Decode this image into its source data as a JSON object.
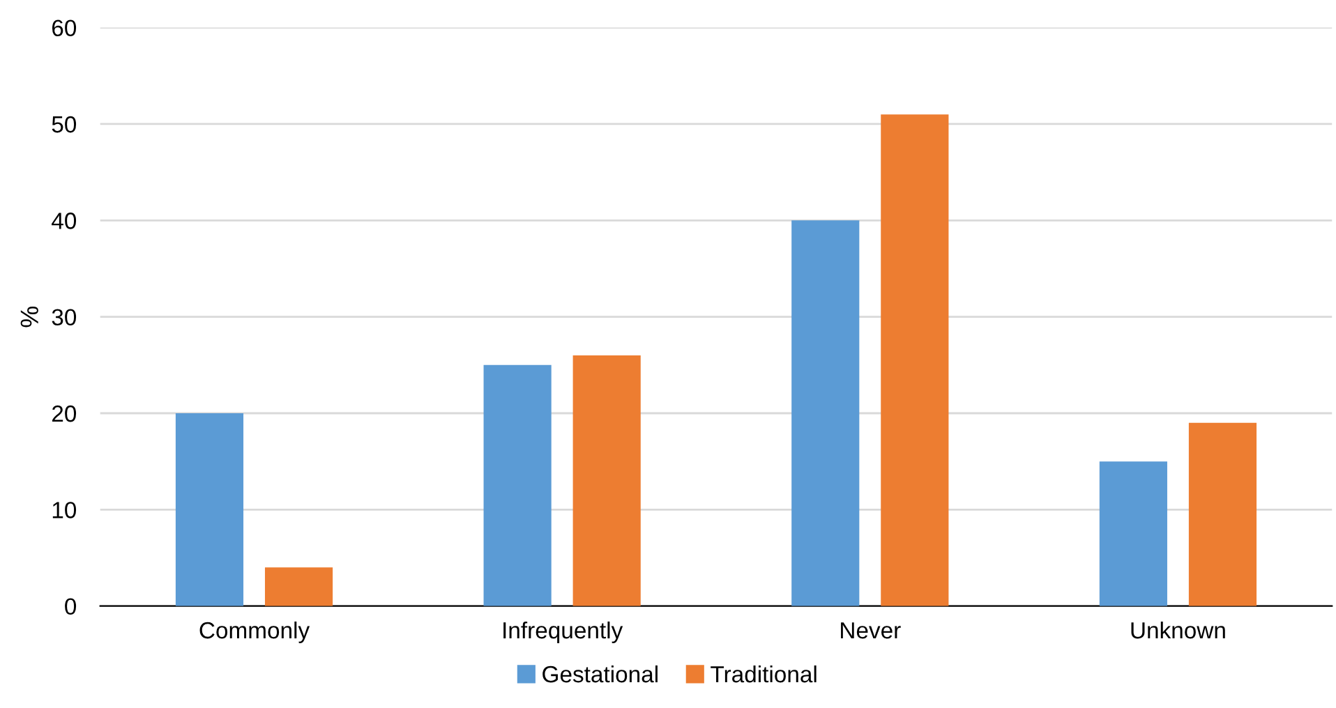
{
  "chart_data": {
    "type": "bar",
    "ylabel": "%",
    "categories": [
      "Commonly",
      "Infrequently",
      "Never",
      "Unknown"
    ],
    "series": [
      {
        "name": "Gestational",
        "color": "#5b9bd5",
        "values": [
          20,
          25,
          40,
          15
        ]
      },
      {
        "name": "Traditional",
        "color": "#ed7d31",
        "values": [
          4,
          26,
          51,
          19
        ]
      }
    ],
    "ylim": [
      0,
      60
    ],
    "yticks": [
      0,
      10,
      20,
      30,
      40,
      50,
      60
    ],
    "grid": "y",
    "legend": "bottom"
  }
}
